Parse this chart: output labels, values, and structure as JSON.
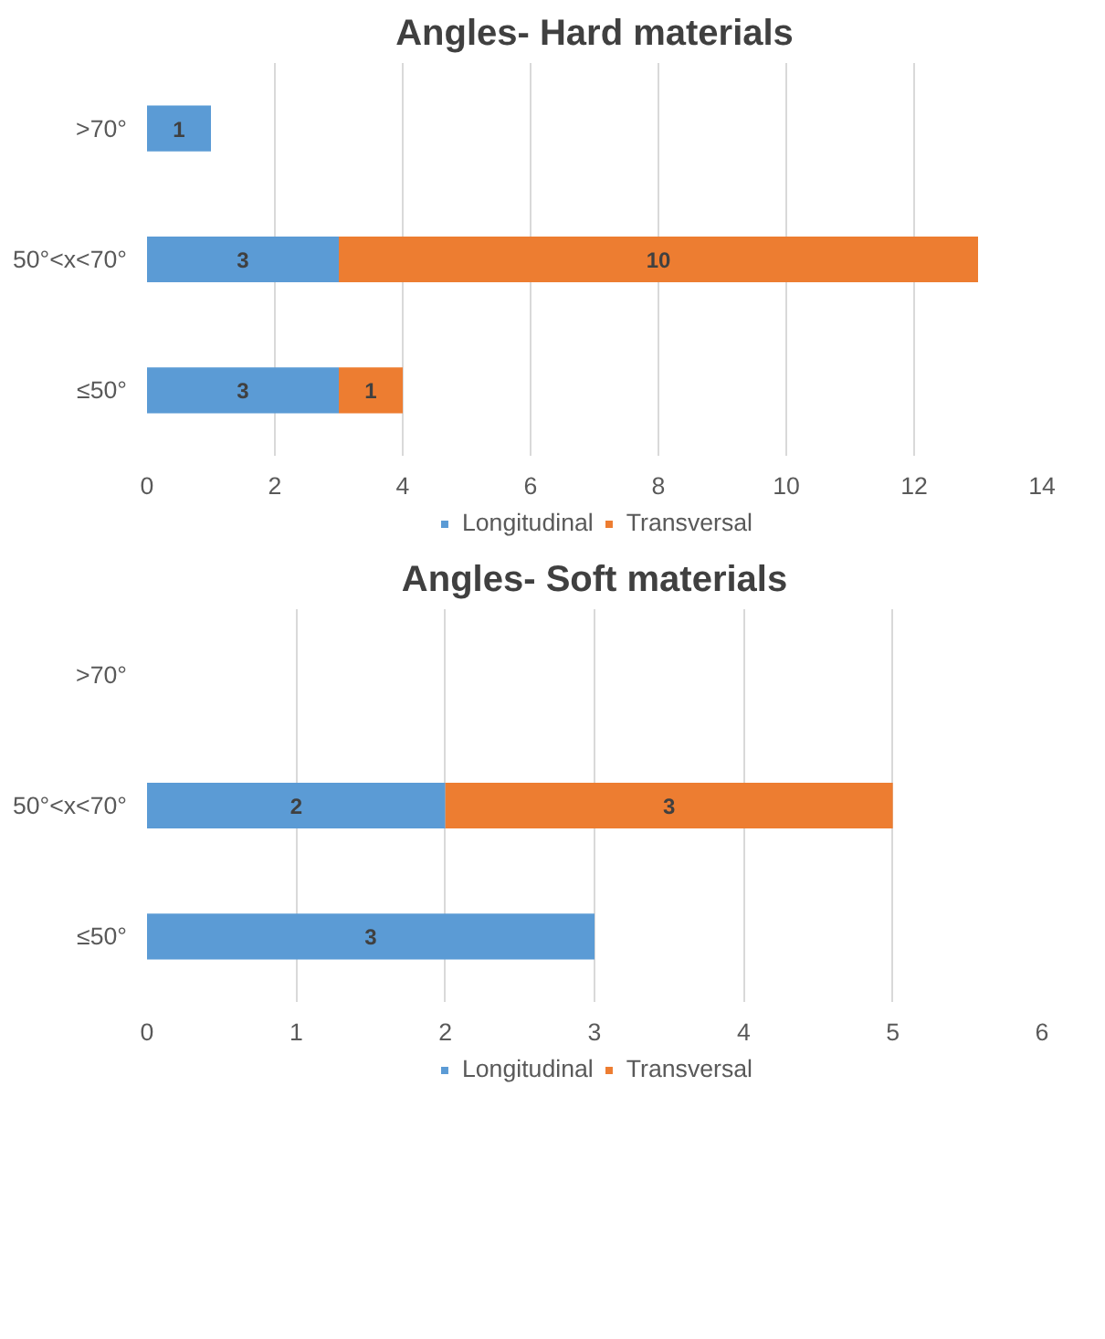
{
  "chart_data": [
    {
      "type": "bar",
      "orientation": "horizontal",
      "stacked": true,
      "title": "Angles- Hard materials",
      "categories": [
        ">70°",
        "50°<x<70°",
        "≤50°"
      ],
      "series": [
        {
          "name": "Longitudinal",
          "color": "#5b9bd5",
          "values": [
            1,
            3,
            3
          ]
        },
        {
          "name": "Transversal",
          "color": "#ed7d31",
          "values": [
            null,
            10,
            1
          ]
        }
      ],
      "xlim": [
        0,
        14
      ],
      "xticks": [
        0,
        2,
        4,
        6,
        8,
        10,
        12,
        14
      ],
      "grid": "x",
      "legend": "bottom",
      "data_labels": true
    },
    {
      "type": "bar",
      "orientation": "horizontal",
      "stacked": true,
      "title": "Angles- Soft materials",
      "categories": [
        ">70°",
        "50°<x<70°",
        "≤50°"
      ],
      "series": [
        {
          "name": "Longitudinal",
          "color": "#5b9bd5",
          "values": [
            null,
            2,
            3
          ]
        },
        {
          "name": "Transversal",
          "color": "#ed7d31",
          "values": [
            null,
            3,
            null
          ]
        }
      ],
      "xlim": [
        0,
        6
      ],
      "xticks": [
        0,
        1,
        2,
        3,
        4,
        5,
        6
      ],
      "grid": "x",
      "legend": "bottom",
      "data_labels": true
    }
  ]
}
